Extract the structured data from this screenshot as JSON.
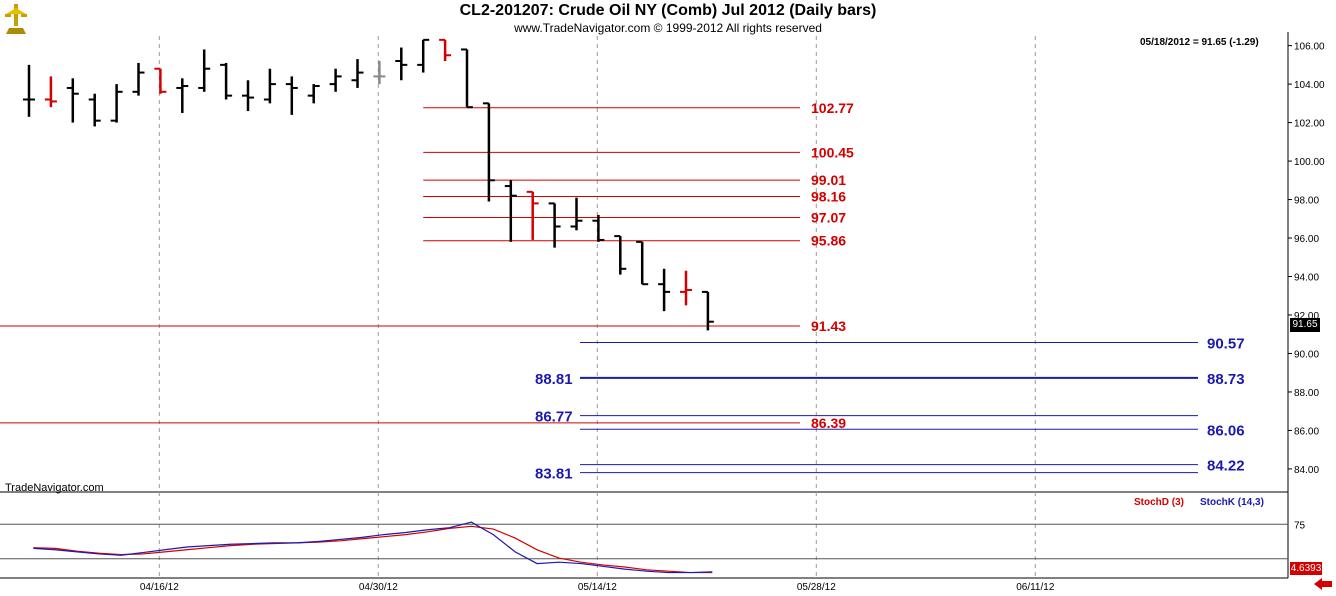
{
  "title": "CL2-201207:  Crude Oil NY (Comb) Jul 2012  (Daily bars)",
  "copyright": "www.TradeNavigator.com © 1999-2012 All rights reserved",
  "quote": "05/18/2012 = 91.65 (-1.29)",
  "brand": "TradeNavigator.com",
  "last_price_label": "91.65",
  "stoch_value_label": "4.6393",
  "indicators": {
    "stoch_d": "StochD (3)",
    "stoch_k": "StochK (14,3)"
  },
  "colors": {
    "up": "#000000",
    "down": "#d40000",
    "accent": "#22c022",
    "red_line": "#d40000",
    "blue_line": "#1a1ab0"
  },
  "chart_data": {
    "type": "ohlc",
    "y_axis": {
      "min": 82.8,
      "max": 106.5,
      "ticks": [
        84.0,
        86.0,
        88.0,
        90.0,
        92.0,
        94.0,
        96.0,
        98.0,
        100.0,
        102.0,
        104.0,
        106.0
      ]
    },
    "x_tick_labels": [
      {
        "date": "04/16/12",
        "index": 7
      },
      {
        "date": "04/30/12",
        "index": 17
      },
      {
        "date": "05/14/12",
        "index": 27
      },
      {
        "date": "05/28/12",
        "index": 37
      },
      {
        "date": "06/11/12",
        "index": 47
      }
    ],
    "bars": [
      {
        "o": 103.2,
        "h": 105.0,
        "l": 102.3,
        "c": 103.2,
        "color": "black"
      },
      {
        "o": 103.2,
        "h": 104.4,
        "l": 102.8,
        "c": 103.1,
        "color": "red"
      },
      {
        "o": 103.8,
        "h": 104.3,
        "l": 102.0,
        "c": 103.5,
        "color": "black"
      },
      {
        "o": 103.2,
        "h": 103.5,
        "l": 101.8,
        "c": 102.1,
        "color": "black"
      },
      {
        "o": 102.1,
        "h": 104.0,
        "l": 102.0,
        "c": 103.6,
        "color": "black"
      },
      {
        "o": 103.6,
        "h": 105.1,
        "l": 103.4,
        "c": 104.6,
        "color": "black"
      },
      {
        "o": 104.8,
        "h": 104.8,
        "l": 103.5,
        "c": 103.6,
        "color": "red"
      },
      {
        "o": 103.8,
        "h": 104.3,
        "l": 102.5,
        "c": 103.9,
        "color": "black"
      },
      {
        "o": 103.8,
        "h": 105.8,
        "l": 103.6,
        "c": 104.8,
        "color": "black"
      },
      {
        "o": 105.0,
        "h": 105.1,
        "l": 103.2,
        "c": 103.4,
        "color": "black"
      },
      {
        "o": 103.4,
        "h": 104.2,
        "l": 102.6,
        "c": 103.3,
        "color": "black"
      },
      {
        "o": 103.2,
        "h": 104.8,
        "l": 103.0,
        "c": 104.0,
        "color": "black"
      },
      {
        "o": 104.0,
        "h": 104.4,
        "l": 102.4,
        "c": 103.8,
        "color": "black"
      },
      {
        "o": 103.4,
        "h": 104.0,
        "l": 103.0,
        "c": 103.9,
        "color": "black"
      },
      {
        "o": 104.0,
        "h": 104.8,
        "l": 103.6,
        "c": 104.4,
        "color": "black"
      },
      {
        "o": 104.2,
        "h": 105.3,
        "l": 103.8,
        "c": 104.6,
        "color": "black"
      },
      {
        "o": 104.4,
        "h": 105.2,
        "l": 104.0,
        "c": 104.4,
        "color": "gray"
      },
      {
        "o": 105.2,
        "h": 105.9,
        "l": 104.2,
        "c": 105.0,
        "color": "black"
      },
      {
        "o": 105.0,
        "h": 106.3,
        "l": 104.6,
        "c": 106.3,
        "color": "black"
      },
      {
        "o": 106.3,
        "h": 106.3,
        "l": 105.2,
        "c": 105.5,
        "color": "red"
      },
      {
        "o": 105.8,
        "h": 105.8,
        "l": 102.8,
        "c": 102.8,
        "color": "black"
      },
      {
        "o": 103.0,
        "h": 103.0,
        "l": 97.9,
        "c": 99.0,
        "color": "black"
      },
      {
        "o": 98.7,
        "h": 99.0,
        "l": 95.8,
        "c": 98.2,
        "color": "black"
      },
      {
        "o": 98.4,
        "h": 98.4,
        "l": 95.9,
        "c": 97.8,
        "color": "red"
      },
      {
        "o": 97.8,
        "h": 97.8,
        "l": 95.5,
        "c": 96.6,
        "color": "black"
      },
      {
        "o": 96.6,
        "h": 98.1,
        "l": 96.4,
        "c": 96.9,
        "color": "black"
      },
      {
        "o": 96.9,
        "h": 97.2,
        "l": 95.8,
        "c": 95.9,
        "color": "black"
      },
      {
        "o": 96.1,
        "h": 96.1,
        "l": 94.1,
        "c": 94.4,
        "color": "black"
      },
      {
        "o": 95.8,
        "h": 95.8,
        "l": 93.6,
        "c": 93.6,
        "color": "black"
      },
      {
        "o": 93.6,
        "h": 94.4,
        "l": 92.2,
        "c": 93.2,
        "color": "black"
      },
      {
        "o": 93.2,
        "h": 94.3,
        "l": 92.5,
        "c": 93.3,
        "color": "red"
      },
      {
        "o": 93.2,
        "h": 93.2,
        "l": 91.2,
        "c": 91.65,
        "color": "black"
      }
    ],
    "red_levels": [
      {
        "value": 102.77,
        "label": "102.77",
        "start_index": 18
      },
      {
        "value": 100.45,
        "label": "100.45",
        "start_index": 18
      },
      {
        "value": 99.01,
        "label": "99.01",
        "start_index": 18
      },
      {
        "value": 98.16,
        "label": "98.16",
        "start_index": 18
      },
      {
        "value": 97.07,
        "label": "97.07",
        "start_index": 18
      },
      {
        "value": 95.86,
        "label": "95.86",
        "start_index": 18
      },
      {
        "value": 91.43,
        "label": "91.43",
        "start_index": -1
      },
      {
        "value": 86.39,
        "label": "86.39",
        "start_index": -1
      }
    ],
    "blue_levels": [
      {
        "value": 90.57,
        "label_right": "90.57",
        "label_left": ""
      },
      {
        "value": 88.73,
        "label_right": "88.73",
        "label_left": "88.81"
      },
      {
        "value": 86.77,
        "label_right": "",
        "label_left": "86.77"
      },
      {
        "value": 86.06,
        "label_right": "86.06",
        "label_left": ""
      },
      {
        "value": 84.22,
        "label_right": "84.22",
        "label_left": ""
      },
      {
        "value": 83.81,
        "label_right": "",
        "label_left": "83.81"
      }
    ],
    "stochastic": {
      "y_range": [
        0,
        100
      ],
      "levels": [
        75,
        25
      ],
      "tick": "75",
      "stoch_k": [
        40,
        38,
        35,
        32,
        30,
        34,
        38,
        42,
        44,
        46,
        47,
        48,
        48,
        50,
        53,
        56,
        60,
        63,
        67,
        70,
        78,
        60,
        35,
        18,
        20,
        18,
        14,
        10,
        7,
        5,
        5,
        6
      ],
      "stoch_d": [
        41,
        40,
        36,
        33,
        31,
        32,
        35,
        38,
        41,
        44,
        46,
        47,
        48,
        49,
        51,
        54,
        57,
        60,
        64,
        69,
        72,
        68,
        55,
        38,
        26,
        20,
        16,
        13,
        9,
        7,
        5,
        5
      ]
    }
  }
}
